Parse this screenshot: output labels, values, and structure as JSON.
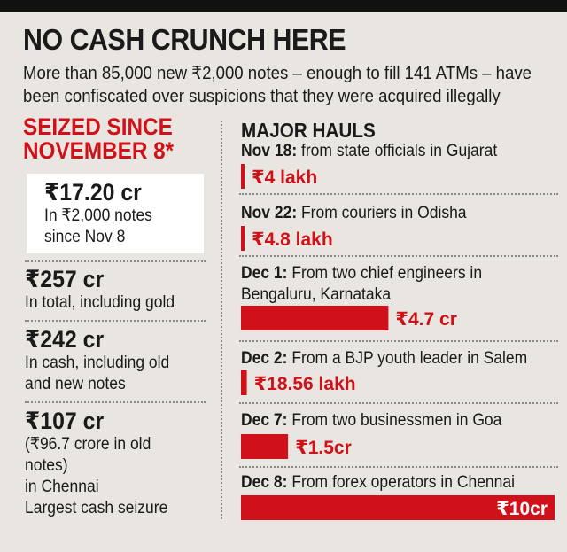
{
  "header": {
    "title": "NO CASH CRUNCH HERE",
    "subtitle_line1": "More than 85,000 new ₹2,000 notes – enough to fill 141 ATMs – have",
    "subtitle_line2": "been confiscated over suspicions that they were acquired illegally"
  },
  "left": {
    "heading_line1": "SEIZED SINCE",
    "heading_line2": "NOVEMBER 8*",
    "stats": [
      {
        "big": "₹17.20 cr",
        "lines": [
          "In ₹2,000 notes",
          "since Nov 8"
        ]
      },
      {
        "big": "₹257 cr",
        "lines": [
          "In total, including gold"
        ]
      },
      {
        "big": "₹242 cr",
        "lines": [
          "In cash, including old",
          "and new notes"
        ]
      },
      {
        "big": "₹107 cr",
        "lines": [
          "(₹96.7 crore in old",
          "notes)",
          "in Chennai",
          "Largest cash seizure"
        ]
      }
    ]
  },
  "chart_data": {
    "type": "bar",
    "title": "MAJOR HAULS",
    "unit": "₹ lakh",
    "categories": [
      "Nov 18",
      "Nov 22",
      "Dec 1",
      "Dec 2",
      "Dec 7",
      "Dec 8"
    ],
    "descriptions": [
      [
        "from state officials in Gujarat"
      ],
      [
        "From couriers in Odisha"
      ],
      [
        "From two chief engineers in",
        "Bengaluru, Karnataka"
      ],
      [
        "From a BJP youth leader in Salem"
      ],
      [
        "From two businessmen in Goa"
      ],
      [
        "From forex operators in Chennai"
      ]
    ],
    "values": [
      4,
      4.8,
      470,
      18.56,
      150,
      1000
    ],
    "labels": [
      "₹4 lakh",
      "₹4.8 lakh",
      "₹4.7 cr",
      "₹18.56 lakh",
      "₹1.5cr",
      "₹10cr"
    ],
    "colors": {
      "bar": "#d0111a",
      "label": "#d0111a",
      "label_inside": "#ffffff"
    }
  }
}
